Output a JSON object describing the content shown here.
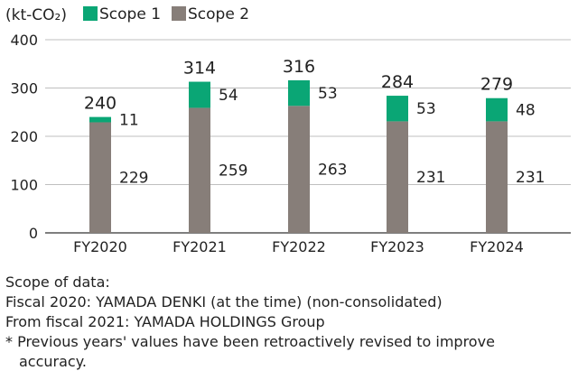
{
  "chart_data": {
    "type": "bar",
    "stacked": true,
    "unit_label": "(kt-CO₂)",
    "categories": [
      "FY2020",
      "FY2021",
      "FY2022",
      "FY2023",
      "FY2024"
    ],
    "series": [
      {
        "name": "Scope 1",
        "color": "#0aa675",
        "values": [
          11,
          54,
          53,
          53,
          48
        ]
      },
      {
        "name": "Scope 2",
        "color": "#877e79",
        "values": [
          229,
          259,
          263,
          231,
          231
        ]
      }
    ],
    "totals": [
      240,
      314,
      316,
      284,
      279
    ],
    "ylim": [
      0,
      400
    ],
    "yticks": [
      0,
      100,
      200,
      300,
      400
    ],
    "grid": true,
    "legend": "top-left"
  },
  "notes": {
    "line1": "Scope of data:",
    "line2": "Fiscal 2020: YAMADA DENKI (at the time) (non-consolidated)",
    "line3": "From fiscal 2021: YAMADA HOLDINGS Group",
    "line4": "* Previous years' values have been retroactively revised to improve",
    "line5": "accuracy."
  }
}
